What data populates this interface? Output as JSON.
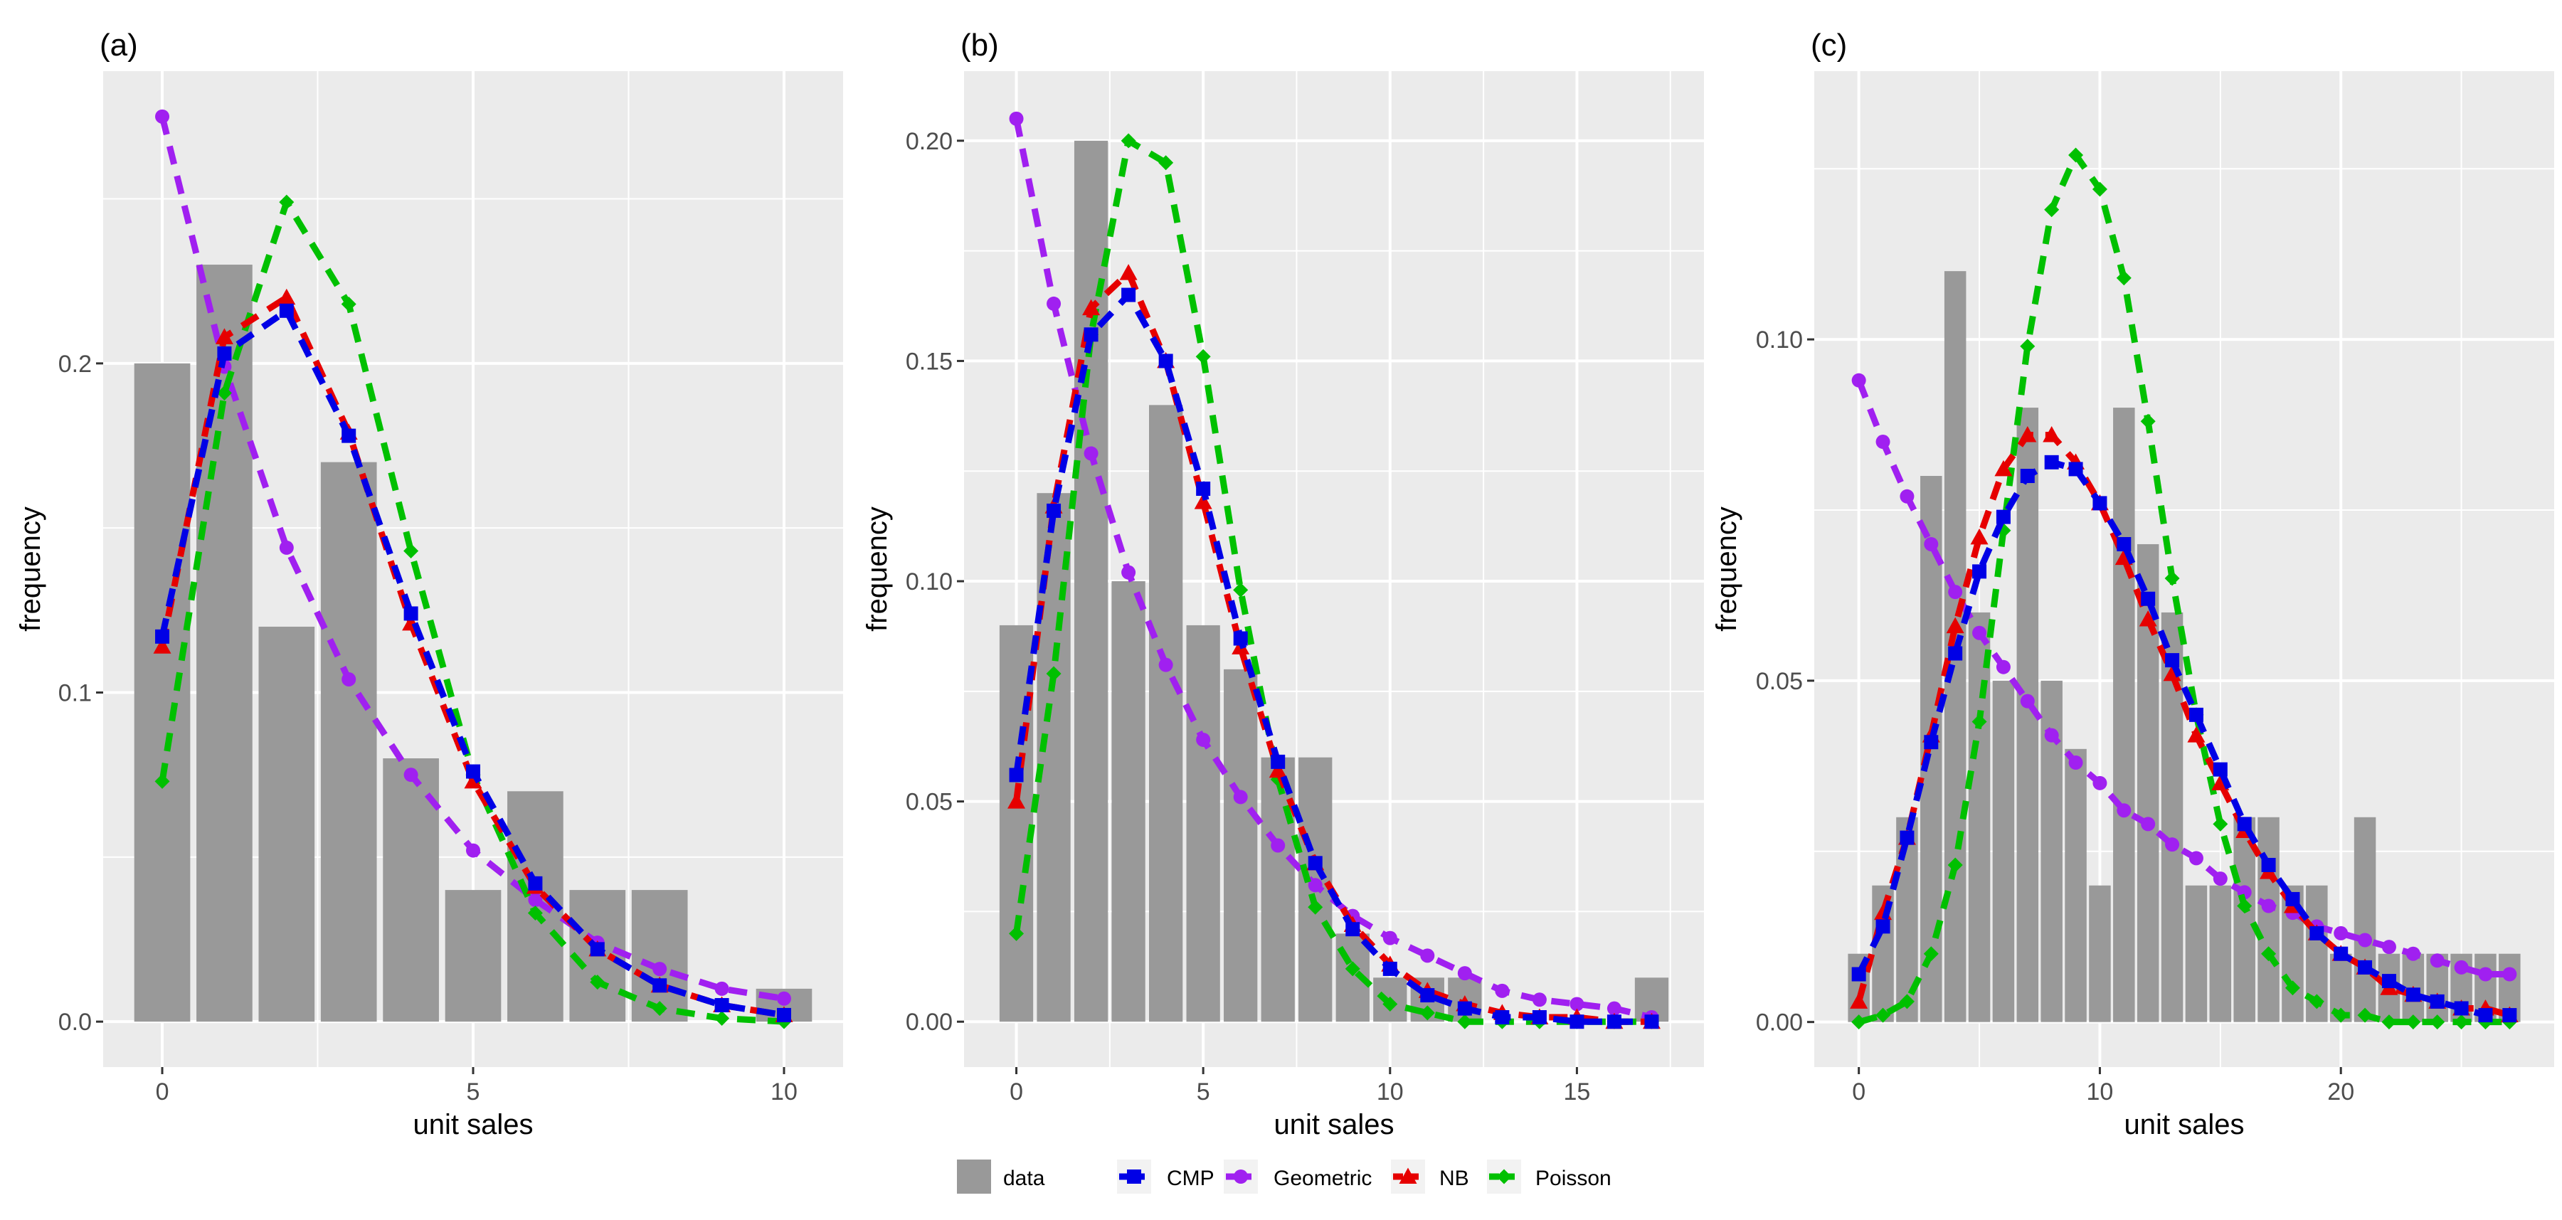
{
  "colors": {
    "panel_bg": "#ebebeb",
    "grid": "#ffffff",
    "bar": "#999999",
    "CMP": "#0000e6",
    "Geometric": "#a020f0",
    "NB": "#e60000",
    "Poisson": "#00c000"
  },
  "legend": {
    "items": [
      {
        "key": "data",
        "label": "data",
        "shape": "bar"
      },
      {
        "key": "CMP",
        "label": "CMP",
        "shape": "square"
      },
      {
        "key": "Geometric",
        "label": "Geometric",
        "shape": "circle"
      },
      {
        "key": "NB",
        "label": "NB",
        "shape": "triangle"
      },
      {
        "key": "Poisson",
        "label": "Poisson",
        "shape": "diamond"
      }
    ]
  },
  "chart_data": [
    {
      "type": "bar",
      "panel_label": "(a)",
      "xlabel": "unit sales",
      "ylabel": "frequency",
      "xlim": [
        -0.95,
        10.95
      ],
      "ylim": [
        -0.0138,
        0.2888
      ],
      "x_ticks": [
        0,
        5,
        10
      ],
      "x_tick_labels": [
        "0",
        "5",
        "10"
      ],
      "y_ticks": [
        0.0,
        0.1,
        0.2
      ],
      "y_tick_labels": [
        "0.0",
        "0.1",
        "0.2"
      ],
      "data_bars": {
        "x": [
          0,
          1,
          2,
          3,
          4,
          5,
          6,
          7,
          8,
          9,
          10
        ],
        "values": [
          0.2,
          0.23,
          0.12,
          0.17,
          0.08,
          0.04,
          0.07,
          0.04,
          0.04,
          0.0,
          0.01
        ]
      },
      "series": [
        {
          "name": "CMP",
          "x": [
            0,
            1,
            2,
            3,
            4,
            5,
            6,
            7,
            8,
            9,
            10
          ],
          "values": [
            0.117,
            0.203,
            0.216,
            0.178,
            0.124,
            0.076,
            0.042,
            0.022,
            0.011,
            0.005,
            0.002
          ]
        },
        {
          "name": "Geometric",
          "x": [
            0,
            1,
            2,
            3,
            4,
            5,
            6,
            7,
            8,
            9,
            10
          ],
          "values": [
            0.275,
            0.199,
            0.144,
            0.104,
            0.075,
            0.052,
            0.037,
            0.024,
            0.016,
            0.01,
            0.007
          ]
        },
        {
          "name": "NB",
          "x": [
            0,
            1,
            2,
            3,
            4,
            5,
            6,
            7,
            8,
            9,
            10
          ],
          "values": [
            0.114,
            0.208,
            0.22,
            0.179,
            0.121,
            0.073,
            0.041,
            0.022,
            0.011,
            0.005,
            0.002
          ]
        },
        {
          "name": "Poisson",
          "x": [
            0,
            1,
            2,
            3,
            4,
            5,
            6,
            7,
            8,
            9,
            10
          ],
          "values": [
            0.073,
            0.191,
            0.249,
            0.218,
            0.143,
            0.075,
            0.033,
            0.012,
            0.004,
            0.001,
            0.0
          ]
        }
      ]
    },
    {
      "type": "bar",
      "panel_label": "(b)",
      "xlabel": "unit sales",
      "ylabel": "frequency",
      "xlim": [
        -1.4,
        18.4
      ],
      "ylim": [
        -0.0103,
        0.2158
      ],
      "x_ticks": [
        0,
        5,
        10,
        15
      ],
      "x_tick_labels": [
        "0",
        "5",
        "10",
        "15"
      ],
      "y_ticks": [
        0.0,
        0.05,
        0.1,
        0.15,
        0.2
      ],
      "y_tick_labels": [
        "0.00",
        "0.05",
        "0.10",
        "0.15",
        "0.20"
      ],
      "data_bars": {
        "x": [
          0,
          1,
          2,
          3,
          4,
          5,
          6,
          7,
          8,
          9,
          10,
          11,
          12,
          13,
          14,
          15,
          16,
          17
        ],
        "values": [
          0.09,
          0.12,
          0.2,
          0.1,
          0.14,
          0.09,
          0.08,
          0.06,
          0.06,
          0.02,
          0.01,
          0.01,
          0.01,
          0.0,
          0.0,
          0.0,
          0.0,
          0.01
        ]
      },
      "series": [
        {
          "name": "CMP",
          "x": [
            0,
            1,
            2,
            3,
            4,
            5,
            6,
            7,
            8,
            9,
            10,
            11,
            12,
            13,
            14,
            15,
            16,
            17
          ],
          "values": [
            0.056,
            0.116,
            0.156,
            0.165,
            0.15,
            0.121,
            0.087,
            0.059,
            0.036,
            0.021,
            0.012,
            0.006,
            0.003,
            0.001,
            0.001,
            0.0,
            0.0,
            0.0
          ]
        },
        {
          "name": "Geometric",
          "x": [
            0,
            1,
            2,
            3,
            4,
            5,
            6,
            7,
            8,
            9,
            10,
            11,
            12,
            13,
            14,
            15,
            16,
            17
          ],
          "values": [
            0.205,
            0.163,
            0.129,
            0.102,
            0.081,
            0.064,
            0.051,
            0.04,
            0.031,
            0.024,
            0.019,
            0.015,
            0.011,
            0.007,
            0.005,
            0.004,
            0.003,
            0.001
          ]
        },
        {
          "name": "NB",
          "x": [
            0,
            1,
            2,
            3,
            4,
            5,
            6,
            7,
            8,
            9,
            10,
            11,
            12,
            13,
            14,
            15,
            16,
            17
          ],
          "values": [
            0.05,
            0.117,
            0.162,
            0.17,
            0.15,
            0.118,
            0.085,
            0.057,
            0.036,
            0.022,
            0.013,
            0.007,
            0.004,
            0.002,
            0.001,
            0.001,
            0.0,
            0.0
          ]
        },
        {
          "name": "Poisson",
          "x": [
            0,
            1,
            2,
            3,
            4,
            5,
            6,
            7,
            8,
            9,
            10,
            11,
            12,
            13,
            14,
            15,
            16,
            17
          ],
          "values": [
            0.02,
            0.079,
            0.156,
            0.2,
            0.195,
            0.151,
            0.098,
            0.055,
            0.026,
            0.012,
            0.004,
            0.002,
            0.0,
            0.0,
            0.0,
            0.0,
            0.0,
            0.0
          ]
        }
      ]
    },
    {
      "type": "bar",
      "panel_label": "(c)",
      "xlabel": "unit sales",
      "ylabel": "frequency",
      "xlim": [
        -1.85,
        28.85
      ],
      "ylim": [
        -0.0066,
        0.1393
      ],
      "x_ticks": [
        0,
        10,
        20
      ],
      "x_tick_labels": [
        "0",
        "10",
        "20"
      ],
      "y_ticks": [
        0.0,
        0.05,
        0.1
      ],
      "y_tick_labels": [
        "0.00",
        "0.05",
        "0.10"
      ],
      "data_bars": {
        "x": [
          0,
          1,
          2,
          3,
          4,
          5,
          6,
          7,
          8,
          9,
          10,
          11,
          12,
          13,
          14,
          15,
          16,
          17,
          18,
          19,
          20,
          21,
          22,
          23,
          24,
          25,
          26,
          27
        ],
        "values": [
          0.01,
          0.02,
          0.03,
          0.08,
          0.11,
          0.06,
          0.05,
          0.09,
          0.05,
          0.04,
          0.02,
          0.09,
          0.07,
          0.06,
          0.02,
          0.02,
          0.03,
          0.03,
          0.02,
          0.02,
          0.01,
          0.03,
          0.01,
          0.01,
          0.01,
          0.01,
          0.01,
          0.01
        ]
      },
      "series": [
        {
          "name": "CMP",
          "x": [
            0,
            1,
            2,
            3,
            4,
            5,
            6,
            7,
            8,
            9,
            10,
            11,
            12,
            13,
            14,
            15,
            16,
            17,
            18,
            19,
            20,
            21,
            22,
            23,
            24,
            25,
            26,
            27
          ],
          "values": [
            0.007,
            0.014,
            0.027,
            0.041,
            0.054,
            0.066,
            0.074,
            0.08,
            0.082,
            0.081,
            0.076,
            0.07,
            0.062,
            0.053,
            0.045,
            0.037,
            0.029,
            0.023,
            0.018,
            0.013,
            0.01,
            0.008,
            0.006,
            0.004,
            0.003,
            0.002,
            0.001,
            0.001
          ]
        },
        {
          "name": "Geometric",
          "x": [
            0,
            1,
            2,
            3,
            4,
            5,
            6,
            7,
            8,
            9,
            10,
            11,
            12,
            13,
            14,
            15,
            16,
            17,
            18,
            19,
            20,
            21,
            22,
            23,
            24,
            25,
            26,
            27
          ],
          "values": [
            0.094,
            0.085,
            0.077,
            0.07,
            0.063,
            0.057,
            0.052,
            0.047,
            0.042,
            0.038,
            0.035,
            0.031,
            0.029,
            0.026,
            0.024,
            0.021,
            0.019,
            0.017,
            0.016,
            0.014,
            0.013,
            0.012,
            0.011,
            0.01,
            0.009,
            0.008,
            0.007,
            0.007
          ]
        },
        {
          "name": "NB",
          "x": [
            0,
            1,
            2,
            3,
            4,
            5,
            6,
            7,
            8,
            9,
            10,
            11,
            12,
            13,
            14,
            15,
            16,
            17,
            18,
            19,
            20,
            21,
            22,
            23,
            24,
            25,
            26,
            27
          ],
          "values": [
            0.003,
            0.016,
            0.027,
            0.042,
            0.058,
            0.071,
            0.081,
            0.086,
            0.086,
            0.082,
            0.076,
            0.068,
            0.059,
            0.051,
            0.042,
            0.035,
            0.028,
            0.022,
            0.017,
            0.013,
            0.01,
            0.008,
            0.005,
            0.004,
            0.003,
            0.002,
            0.002,
            0.001
          ]
        },
        {
          "name": "Poisson",
          "x": [
            0,
            1,
            2,
            3,
            4,
            5,
            6,
            7,
            8,
            9,
            10,
            11,
            12,
            13,
            14,
            15,
            16,
            17,
            18,
            19,
            20,
            21,
            22,
            23,
            24,
            25,
            26,
            27
          ],
          "values": [
            0.0,
            0.001,
            0.003,
            0.01,
            0.023,
            0.044,
            0.072,
            0.099,
            0.119,
            0.127,
            0.122,
            0.109,
            0.088,
            0.065,
            0.045,
            0.029,
            0.017,
            0.01,
            0.005,
            0.003,
            0.001,
            0.001,
            0.0,
            0.0,
            0.0,
            0.0,
            0.0,
            0.0
          ]
        }
      ]
    }
  ]
}
